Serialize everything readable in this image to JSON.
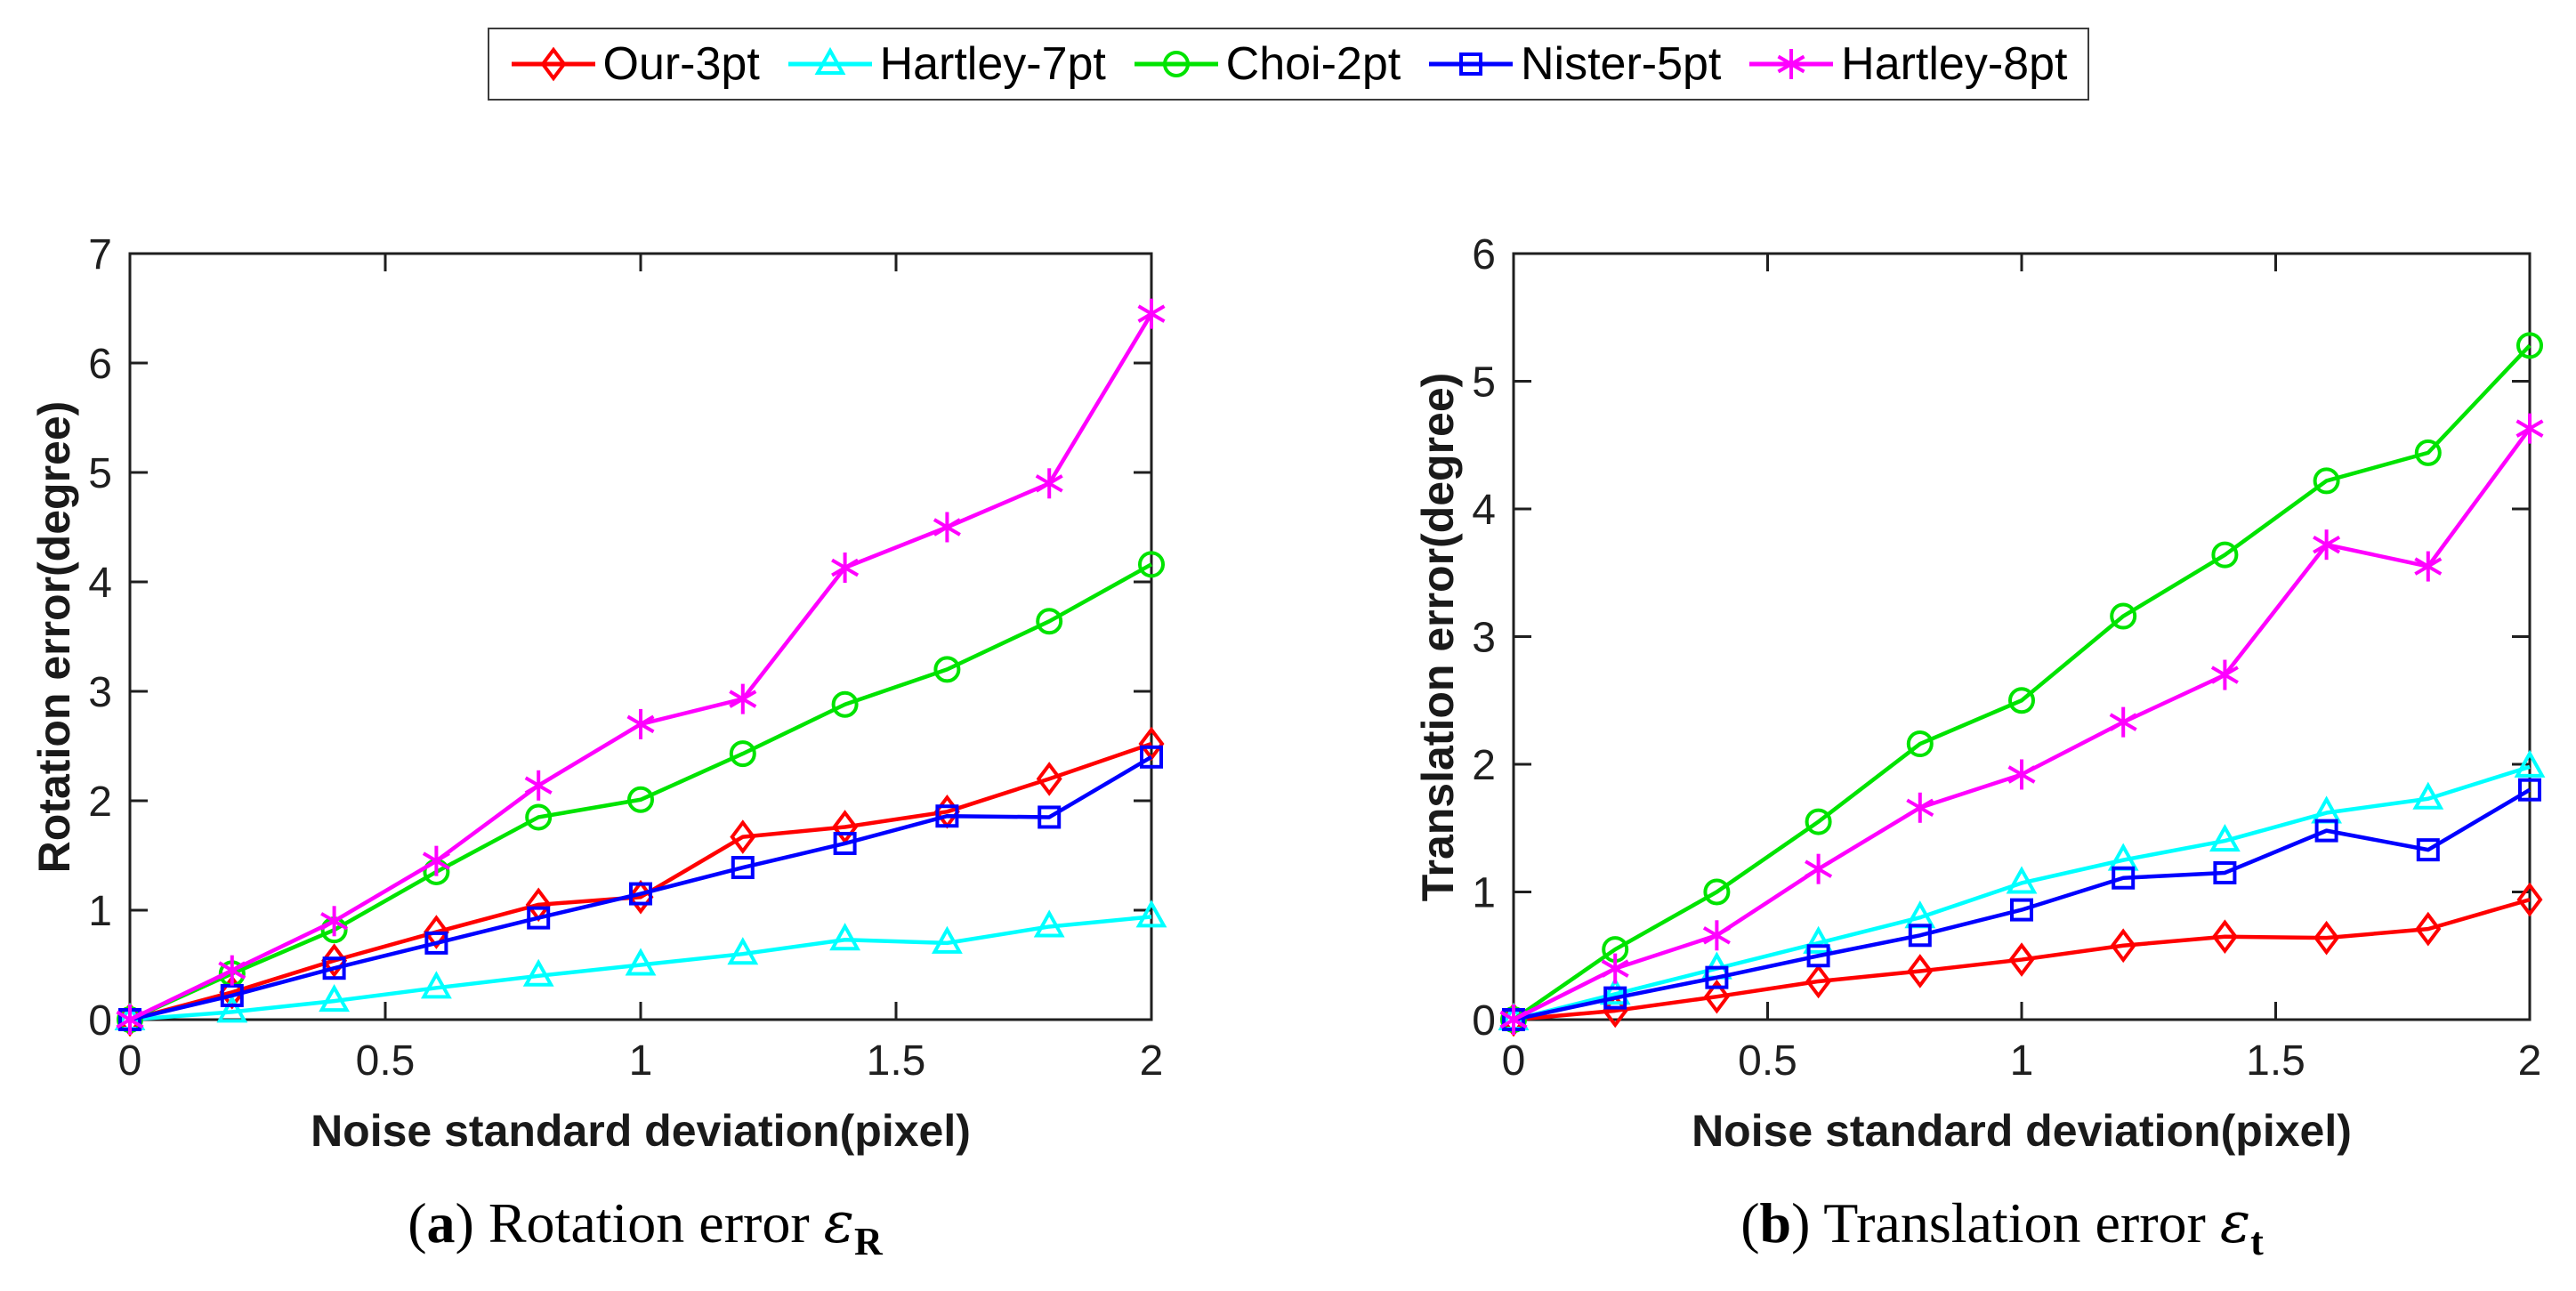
{
  "page": {
    "background": "#ffffff",
    "text_color": "#000000",
    "axis_color": "#1f1f1f"
  },
  "legend": {
    "items": [
      {
        "label": "Our-3pt",
        "color": "#ff0000",
        "marker": "diamond"
      },
      {
        "label": "Hartley-7pt",
        "color": "#00ffff",
        "marker": "triangle"
      },
      {
        "label": "Choi-2pt",
        "color": "#00e300",
        "marker": "circle"
      },
      {
        "label": "Nister-5pt",
        "color": "#0000ff",
        "marker": "square"
      },
      {
        "label": "Hartley-8pt",
        "color": "#ff00ff",
        "marker": "asterisk"
      }
    ]
  },
  "captions": {
    "a": {
      "paren": "(",
      "letter": "a",
      "after": ") Rotation error ",
      "epsilon": "ε",
      "subscript": "R"
    },
    "b": {
      "paren": "(",
      "letter": "b",
      "after": ") Translation error ",
      "epsilon": "ε",
      "subscript": "t"
    }
  },
  "chart_data": [
    {
      "type": "line",
      "title": "(a) Rotation error εR",
      "xlabel": "Noise standard deviation(pixel)",
      "ylabel": "Rotation error(degree)",
      "xlim": [
        0,
        2
      ],
      "ylim": [
        0,
        7
      ],
      "grid": false,
      "legend_position": "top-outside-shared",
      "xticks": [
        0,
        0.5,
        1,
        1.5,
        2
      ],
      "xtick_labels": [
        "0",
        "0.5",
        "1",
        "1.5",
        "2"
      ],
      "yticks": [
        0,
        1,
        2,
        3,
        4,
        5,
        6,
        7
      ],
      "ytick_labels": [
        "0",
        "1",
        "2",
        "3",
        "4",
        "5",
        "6",
        "7"
      ],
      "x": [
        0,
        0.2,
        0.4,
        0.6,
        0.8,
        1.0,
        1.2,
        1.4,
        1.6,
        1.8,
        2.0
      ],
      "series": [
        {
          "name": "Our-3pt",
          "color": "#ff0000",
          "marker": "diamond",
          "values": [
            0,
            0.25,
            0.54,
            0.8,
            1.05,
            1.12,
            1.67,
            1.76,
            1.9,
            2.2,
            2.52
          ]
        },
        {
          "name": "Hartley-7pt",
          "color": "#00ffff",
          "marker": "triangle",
          "values": [
            0,
            0.07,
            0.17,
            0.29,
            0.4,
            0.5,
            0.6,
            0.73,
            0.7,
            0.85,
            0.94
          ]
        },
        {
          "name": "Choi-2pt",
          "color": "#00e300",
          "marker": "circle",
          "values": [
            0,
            0.42,
            0.82,
            1.35,
            1.85,
            2.01,
            2.43,
            2.88,
            3.2,
            3.64,
            4.16
          ]
        },
        {
          "name": "Nister-5pt",
          "color": "#0000ff",
          "marker": "square",
          "values": [
            0,
            0.22,
            0.47,
            0.7,
            0.93,
            1.15,
            1.39,
            1.61,
            1.86,
            1.85,
            2.4
          ]
        },
        {
          "name": "Hartley-8pt",
          "color": "#ff00ff",
          "marker": "asterisk",
          "values": [
            0,
            0.45,
            0.9,
            1.45,
            2.14,
            2.7,
            2.93,
            4.13,
            4.5,
            4.9,
            6.45
          ]
        }
      ]
    },
    {
      "type": "line",
      "title": "(b) Translation error εt",
      "xlabel": "Noise standard deviation(pixel)",
      "ylabel": "Translation error(degree)",
      "xlim": [
        0,
        2
      ],
      "ylim": [
        0,
        6
      ],
      "grid": false,
      "legend_position": "top-outside-shared",
      "xticks": [
        0,
        0.5,
        1,
        1.5,
        2
      ],
      "xtick_labels": [
        "0",
        "0.5",
        "1",
        "1.5",
        "2"
      ],
      "yticks": [
        0,
        1,
        2,
        3,
        4,
        5,
        6
      ],
      "ytick_labels": [
        "0",
        "1",
        "2",
        "3",
        "4",
        "5",
        "6"
      ],
      "x": [
        0,
        0.2,
        0.4,
        0.6,
        0.8,
        1.0,
        1.2,
        1.4,
        1.6,
        1.8,
        2.0
      ],
      "series": [
        {
          "name": "Our-3pt",
          "color": "#ff0000",
          "marker": "diamond",
          "values": [
            0,
            0.07,
            0.18,
            0.3,
            0.38,
            0.47,
            0.58,
            0.65,
            0.64,
            0.71,
            0.94
          ]
        },
        {
          "name": "Hartley-7pt",
          "color": "#00ffff",
          "marker": "triangle",
          "values": [
            0,
            0.2,
            0.4,
            0.6,
            0.8,
            1.07,
            1.25,
            1.4,
            1.62,
            1.73,
            1.98
          ]
        },
        {
          "name": "Choi-2pt",
          "color": "#00e300",
          "marker": "circle",
          "values": [
            0,
            0.55,
            1.0,
            1.55,
            2.16,
            2.5,
            3.16,
            3.64,
            4.22,
            4.44,
            5.28
          ]
        },
        {
          "name": "Nister-5pt",
          "color": "#0000ff",
          "marker": "square",
          "values": [
            0,
            0.17,
            0.33,
            0.5,
            0.66,
            0.86,
            1.11,
            1.15,
            1.48,
            1.33,
            1.8
          ]
        },
        {
          "name": "Hartley-8pt",
          "color": "#ff00ff",
          "marker": "asterisk",
          "values": [
            0,
            0.4,
            0.66,
            1.18,
            1.66,
            1.92,
            2.33,
            2.7,
            3.72,
            3.55,
            4.63
          ]
        }
      ]
    }
  ]
}
